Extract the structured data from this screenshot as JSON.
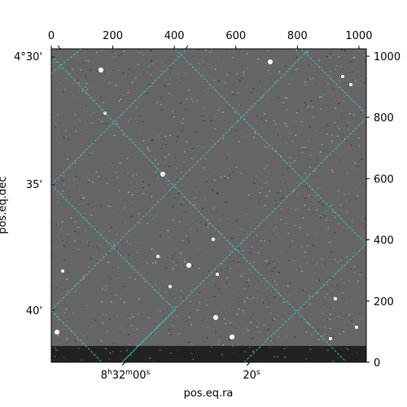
{
  "chart_data": {
    "type": "heatmap",
    "description_free": true,
    "title": "",
    "xlabel": "pos.eq.ra",
    "ylabel": "pos.eq.dec",
    "pixel_axes": {
      "x_range": [
        0,
        1024
      ],
      "y_range": [
        0,
        1024
      ],
      "bottom_ticks": [
        0,
        200,
        400,
        600,
        800,
        1000
      ],
      "right_ticks": [
        0,
        200,
        400,
        600,
        800,
        1000
      ]
    },
    "world_axes": {
      "ra_tick_labels": [
        "8h32m00s",
        "20s"
      ],
      "dec_tick_labels": [
        "4°30'",
        "35'",
        "40'"
      ]
    },
    "grid": true,
    "colormap": "grayscale",
    "grid_color": "#33cccc"
  },
  "labels": {
    "x_title": "pos.eq.ra",
    "y_title": "pos.eq.dec",
    "ra_main": "8",
    "ra_h": "h",
    "ra_main2": "32",
    "ra_m": "m",
    "ra_main3": "00",
    "ra_s": "s",
    "ra2": "20",
    "ra2_s": "s",
    "dec1": "4°30'",
    "dec2": "35'",
    "dec3": "40'"
  }
}
